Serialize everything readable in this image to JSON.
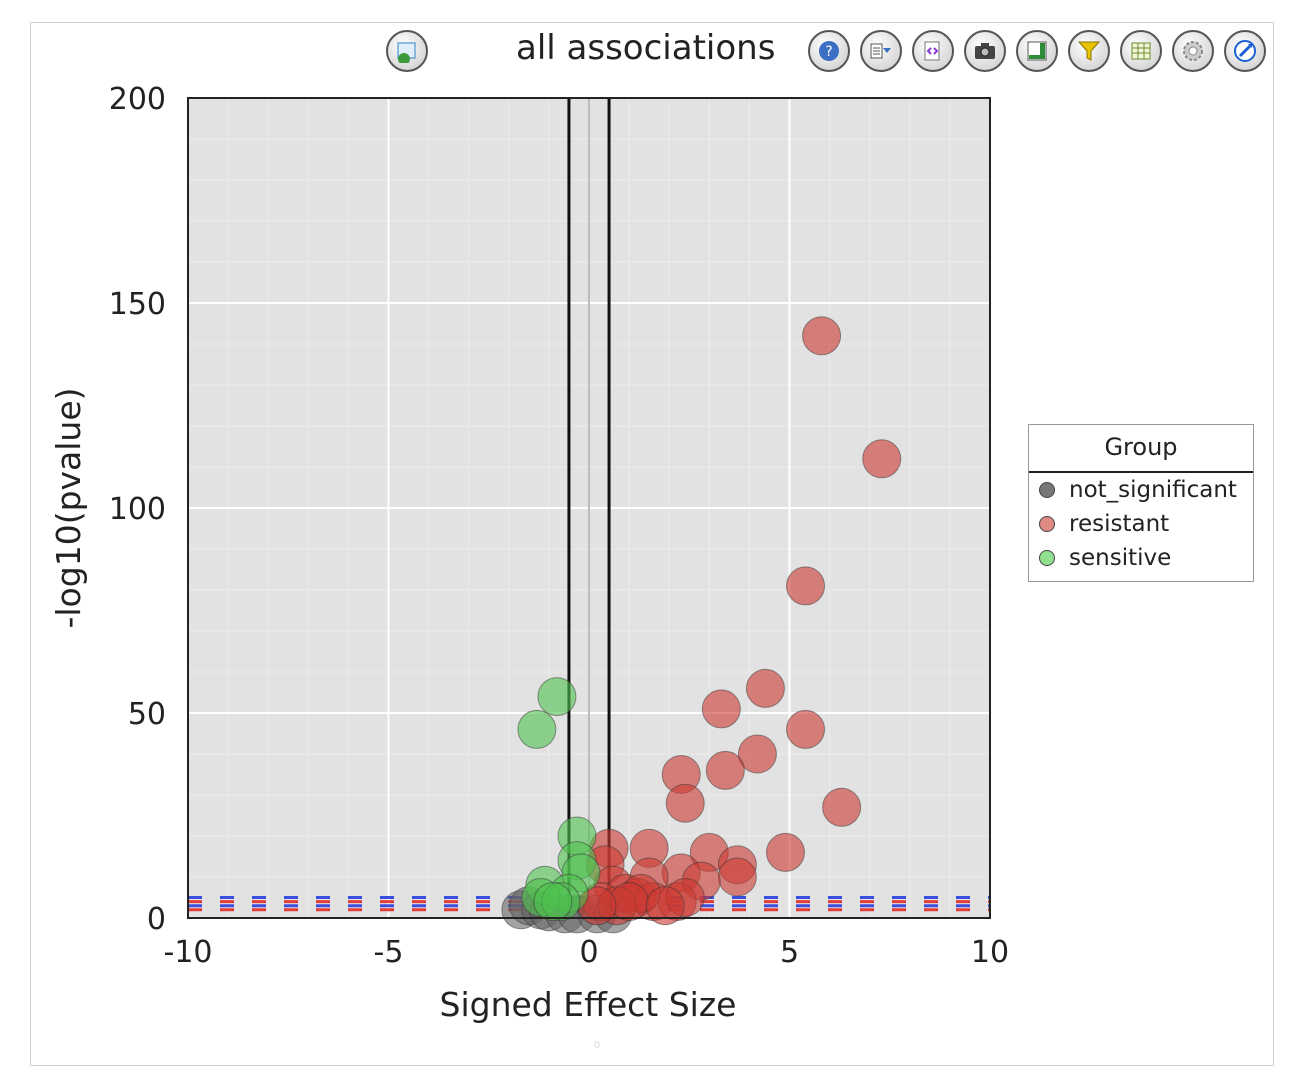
{
  "toolbar": {
    "title": "all associations",
    "buttons": [
      {
        "name": "image-icon-button",
        "icon": "image-icon",
        "color": "#6aa6d8"
      },
      {
        "name": "help-button",
        "icon": "help-icon",
        "color": "#3a6fc4"
      },
      {
        "name": "options-menu-button",
        "icon": "dropdown-icon",
        "color": "#3a6fc4"
      },
      {
        "name": "code-button",
        "icon": "code-icon",
        "color": "#8b3ad1"
      },
      {
        "name": "camera-button",
        "icon": "camera-icon",
        "color": "#333333"
      },
      {
        "name": "layout-button",
        "icon": "layout-icon",
        "color": "#2e8b3a"
      },
      {
        "name": "filter-button",
        "icon": "filter-icon",
        "color": "#d4b000"
      },
      {
        "name": "table-button",
        "icon": "table-icon",
        "color": "#2e8b3a"
      },
      {
        "name": "settings-button",
        "icon": "gear-icon",
        "color": "#888888"
      },
      {
        "name": "edit-button",
        "icon": "edit-icon",
        "color": "#1a5fd6"
      }
    ]
  },
  "chart_data": {
    "type": "scatter",
    "title": "all associations",
    "xlabel": "Signed Effect Size",
    "ylabel": "-log10(pvalue)",
    "xlim": [
      -10,
      10
    ],
    "ylim": [
      0,
      200
    ],
    "xticks": [
      "-10",
      "-5",
      "0",
      "5",
      "10"
    ],
    "yticks": [
      "0",
      "50",
      "100",
      "150",
      "200"
    ],
    "grid": true,
    "legend": {
      "title": "Group",
      "placement": "right"
    },
    "vlines": [
      -0.5,
      0,
      0.5
    ],
    "hlines": [
      2,
      3,
      4,
      5
    ],
    "colors": {
      "not_significant": "#666666",
      "resistant": "#cc3b32",
      "sensitive": "#4fc24f"
    },
    "series": [
      {
        "name": "not_significant",
        "points": [
          [
            -1.7,
            2
          ],
          [
            -1.5,
            3
          ],
          [
            -1.2,
            2
          ],
          [
            -1.0,
            1.5
          ],
          [
            -0.6,
            1
          ],
          [
            -0.3,
            1
          ],
          [
            0.2,
            1
          ],
          [
            0.6,
            1
          ]
        ]
      },
      {
        "name": "resistant",
        "points": [
          [
            5.8,
            142
          ],
          [
            7.3,
            112
          ],
          [
            5.4,
            81
          ],
          [
            4.4,
            56
          ],
          [
            3.3,
            51
          ],
          [
            5.4,
            46
          ],
          [
            4.2,
            40
          ],
          [
            3.4,
            36
          ],
          [
            2.3,
            35
          ],
          [
            2.4,
            28
          ],
          [
            6.3,
            27
          ],
          [
            4.9,
            16
          ],
          [
            3.0,
            16
          ],
          [
            1.5,
            17
          ],
          [
            0.5,
            17
          ],
          [
            3.7,
            13
          ],
          [
            3.7,
            10
          ],
          [
            2.3,
            11
          ],
          [
            2.8,
            9
          ],
          [
            1.5,
            10
          ],
          [
            0.4,
            13
          ],
          [
            0.6,
            8
          ],
          [
            0.9,
            6
          ],
          [
            1.2,
            5
          ],
          [
            0.3,
            4
          ],
          [
            1.6,
            4
          ],
          [
            2.2,
            4
          ],
          [
            2.4,
            5
          ],
          [
            1.3,
            6
          ],
          [
            0.7,
            3
          ],
          [
            1.0,
            4
          ],
          [
            1.9,
            3
          ],
          [
            0.2,
            3
          ]
        ]
      },
      {
        "name": "sensitive",
        "points": [
          [
            -0.8,
            54
          ],
          [
            -1.3,
            46
          ],
          [
            -0.3,
            20
          ],
          [
            -0.3,
            14
          ],
          [
            -0.2,
            11
          ],
          [
            -1.1,
            8
          ],
          [
            -0.5,
            6
          ],
          [
            -1.2,
            5
          ],
          [
            -0.7,
            4
          ],
          [
            -0.9,
            4
          ]
        ]
      }
    ]
  },
  "footer_mark": "0"
}
